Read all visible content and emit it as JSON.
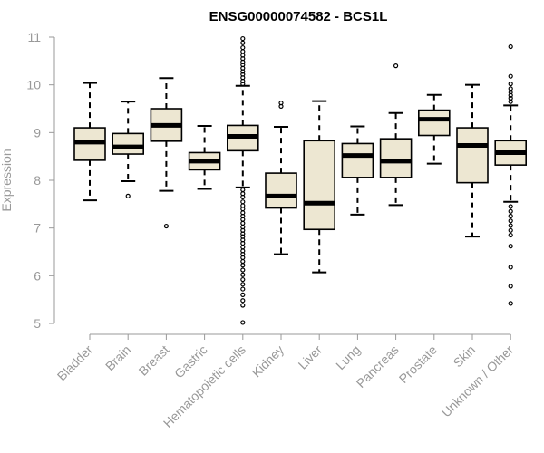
{
  "chart_data": {
    "type": "boxplot",
    "title": "ENSG00000074582 - BCS1L",
    "xlabel": "",
    "ylabel": "Expression",
    "ylim": [
      5,
      11
    ],
    "yticks": [
      5,
      6,
      7,
      8,
      9,
      10,
      11
    ],
    "colors": {
      "box_fill": "#ede7d2",
      "box_stroke": "#000000",
      "axis": "#999999"
    },
    "categories": [
      "Bladder",
      "Brain",
      "Breast",
      "Gastric",
      "Hematopoietic cells",
      "Kidney",
      "Liver",
      "Lung",
      "Pancreas",
      "Prostate",
      "Skin",
      "Unknown / Other"
    ],
    "boxes": [
      {
        "category": "Bladder",
        "whisker_low": 7.58,
        "q1": 8.42,
        "median": 8.8,
        "q3": 9.1,
        "whisker_high": 10.04,
        "outliers": []
      },
      {
        "category": "Brain",
        "whisker_low": 7.98,
        "q1": 8.55,
        "median": 8.7,
        "q3": 8.98,
        "whisker_high": 9.65,
        "outliers": [
          7.67
        ]
      },
      {
        "category": "Breast",
        "whisker_low": 7.78,
        "q1": 8.82,
        "median": 9.15,
        "q3": 9.5,
        "whisker_high": 10.14,
        "outliers": [
          7.04
        ]
      },
      {
        "category": "Gastric",
        "whisker_low": 7.82,
        "q1": 8.22,
        "median": 8.4,
        "q3": 8.58,
        "whisker_high": 9.14,
        "outliers": []
      },
      {
        "category": "Hematopoietic cells",
        "whisker_low": 7.85,
        "q1": 8.62,
        "median": 8.92,
        "q3": 9.15,
        "whisker_high": 9.98,
        "outliers": [
          10.97,
          10.88,
          10.78,
          10.7,
          10.62,
          10.55,
          10.48,
          10.42,
          10.35,
          10.28,
          10.22,
          10.15,
          10.08,
          10.02,
          7.8,
          7.72,
          7.65,
          7.55,
          7.47,
          7.4,
          7.32,
          7.25,
          7.18,
          7.1,
          7.02,
          6.95,
          6.88,
          6.82,
          6.75,
          6.68,
          6.6,
          6.52,
          6.45,
          6.38,
          6.3,
          6.22,
          6.12,
          6.02,
          5.92,
          5.82,
          5.72,
          5.6,
          5.48,
          5.38,
          5.02
        ]
      },
      {
        "category": "Kidney",
        "whisker_low": 6.45,
        "q1": 7.42,
        "median": 7.67,
        "q3": 8.15,
        "whisker_high": 9.12,
        "outliers": [
          9.62,
          9.55
        ]
      },
      {
        "category": "Liver",
        "whisker_low": 6.07,
        "q1": 6.97,
        "median": 7.52,
        "q3": 8.83,
        "whisker_high": 9.66,
        "outliers": []
      },
      {
        "category": "Lung",
        "whisker_low": 7.28,
        "q1": 8.06,
        "median": 8.52,
        "q3": 8.77,
        "whisker_high": 9.13,
        "outliers": []
      },
      {
        "category": "Pancreas",
        "whisker_low": 7.48,
        "q1": 8.06,
        "median": 8.4,
        "q3": 8.87,
        "whisker_high": 9.41,
        "outliers": [
          10.4
        ]
      },
      {
        "category": "Prostate",
        "whisker_low": 8.35,
        "q1": 8.94,
        "median": 9.28,
        "q3": 9.47,
        "whisker_high": 9.79,
        "outliers": []
      },
      {
        "category": "Skin",
        "whisker_low": 6.82,
        "q1": 7.95,
        "median": 8.73,
        "q3": 9.1,
        "whisker_high": 10.0,
        "outliers": []
      },
      {
        "category": "Unknown / Other",
        "whisker_low": 7.55,
        "q1": 8.32,
        "median": 8.58,
        "q3": 8.83,
        "whisker_high": 9.57,
        "outliers": [
          10.8,
          10.18,
          10.02,
          9.92,
          9.85,
          9.78,
          9.72,
          9.65,
          7.45,
          7.35,
          7.25,
          7.15,
          7.05,
          6.95,
          6.85,
          6.62,
          6.18,
          5.78,
          5.42
        ]
      }
    ]
  }
}
